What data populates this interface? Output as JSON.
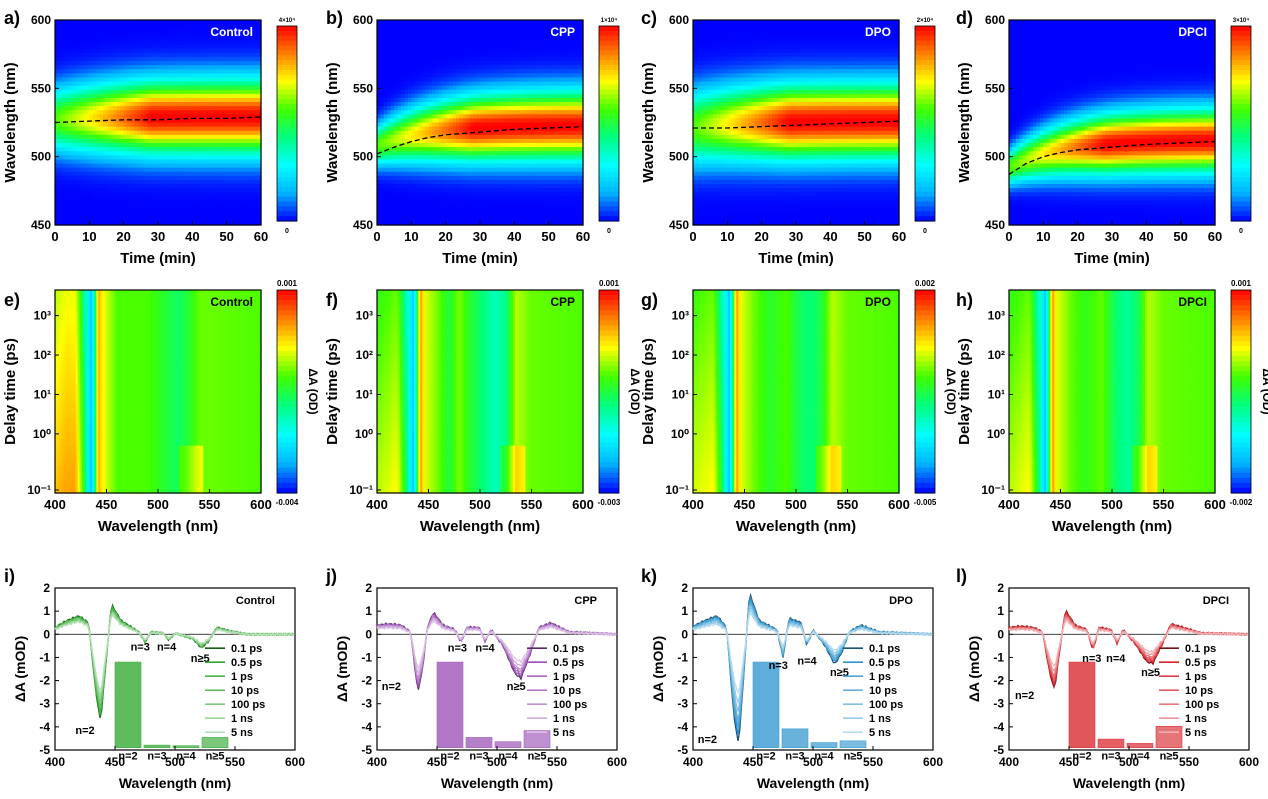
{
  "colors": {
    "control": "#2ea82e",
    "cpp": "#9b4fb5",
    "dpo": "#2f95d0",
    "dpci": "#d8232a",
    "colormap": [
      "#0000ff",
      "#00b4ff",
      "#00ffff",
      "#00ff80",
      "#40ff00",
      "#ffff00",
      "#ff8000",
      "#ff0000"
    ]
  },
  "chart_data": [
    {
      "id": "a",
      "label": "a)",
      "type": "heatmap",
      "title": "Control",
      "xlabel": "Time (min)",
      "ylabel": "Wavelength (nm)",
      "xlim": [
        0,
        60
      ],
      "ylim": [
        450,
        600
      ],
      "xticks": [
        "0",
        "10",
        "20",
        "30",
        "40",
        "50",
        "60"
      ],
      "yticks": [
        "450",
        "500",
        "550",
        "600"
      ],
      "colorbar": {
        "max": "4×10⁴",
        "min": "0"
      },
      "peak_start": 527,
      "peak_end": 529,
      "band_start": 22,
      "band_end": 26,
      "trace": {
        "x": [
          0,
          10,
          20,
          30,
          40,
          50,
          60
        ],
        "y": [
          525,
          526,
          527,
          527,
          528,
          528,
          529
        ]
      }
    },
    {
      "id": "b",
      "label": "b)",
      "type": "heatmap",
      "title": "CPP",
      "xlabel": "Time (min)",
      "ylabel": "Wavelength (nm)",
      "xlim": [
        0,
        60
      ],
      "ylim": [
        450,
        600
      ],
      "xticks": [
        "0",
        "10",
        "20",
        "30",
        "40",
        "50",
        "60"
      ],
      "yticks": [
        "450",
        "500",
        "550",
        "600"
      ],
      "colorbar": {
        "max": "1×10⁴",
        "min": "0"
      },
      "peak_start": 508,
      "peak_end": 523,
      "band_start": 14,
      "band_end": 24,
      "trace": {
        "x": [
          0,
          5,
          10,
          15,
          20,
          30,
          40,
          50,
          60
        ],
        "y": [
          502,
          507,
          511,
          514,
          516,
          518,
          520,
          521,
          522
        ]
      }
    },
    {
      "id": "c",
      "label": "c)",
      "type": "heatmap",
      "title": "DPO",
      "xlabel": "Time (min)",
      "ylabel": "Wavelength (nm)",
      "xlim": [
        0,
        60
      ],
      "ylim": [
        450,
        600
      ],
      "xticks": [
        "0",
        "10",
        "20",
        "30",
        "40",
        "50",
        "60"
      ],
      "yticks": [
        "450",
        "500",
        "550",
        "600"
      ],
      "colorbar": {
        "max": "2×10⁴",
        "min": "0"
      },
      "peak_start": 521,
      "peak_end": 526,
      "band_start": 26,
      "band_end": 26,
      "trace": {
        "x": [
          0,
          10,
          20,
          30,
          40,
          50,
          60
        ],
        "y": [
          521,
          521,
          522,
          523,
          524,
          525,
          526
        ]
      }
    },
    {
      "id": "d",
      "label": "d)",
      "type": "heatmap",
      "title": "DPCI",
      "xlabel": "Time (min)",
      "ylabel": "Wavelength (nm)",
      "xlim": [
        0,
        60
      ],
      "ylim": [
        450,
        600
      ],
      "xticks": [
        "0",
        "10",
        "20",
        "30",
        "40",
        "50",
        "60"
      ],
      "yticks": [
        "450",
        "500",
        "550",
        "600"
      ],
      "colorbar": {
        "max": "3×10⁴",
        "min": "0"
      },
      "peak_start": 492,
      "peak_end": 512,
      "band_start": 12,
      "band_end": 22,
      "trace": {
        "x": [
          0,
          5,
          10,
          15,
          20,
          30,
          40,
          50,
          60
        ],
        "y": [
          487,
          495,
          500,
          503,
          505,
          507,
          509,
          510,
          511
        ]
      }
    },
    {
      "id": "e",
      "label": "e)",
      "type": "heatmap",
      "title": "Control",
      "xlabel": "Wavelength (nm)",
      "ylabel": "Delay time (ps)",
      "xlim": [
        400,
        600
      ],
      "ylog": true,
      "yticks": [
        "10⁻¹",
        "10⁰",
        "10¹",
        "10²",
        "10³"
      ],
      "xticks": [
        "400",
        "450",
        "500",
        "550",
        "600"
      ],
      "colorbar": {
        "max": "0.001",
        "min": "-0.004",
        "label": "ΔA (OD)"
      },
      "profile": {
        "wl": [
          400,
          410,
          420,
          428,
          432,
          435,
          438,
          442,
          446,
          460,
          490,
          520,
          528,
          540,
          555,
          600
        ],
        "v": [
          0.78,
          0.82,
          0.82,
          0.55,
          0.28,
          0.2,
          0.32,
          0.82,
          0.72,
          0.58,
          0.58,
          0.46,
          0.5,
          0.6,
          0.6,
          0.58
        ]
      }
    },
    {
      "id": "f",
      "label": "f)",
      "type": "heatmap",
      "title": "CPP",
      "xlabel": "Wavelength (nm)",
      "ylabel": "Delay time (ps)",
      "xlim": [
        400,
        600
      ],
      "ylog": true,
      "yticks": [
        "10⁻¹",
        "10⁰",
        "10¹",
        "10²",
        "10³"
      ],
      "xticks": [
        "400",
        "450",
        "500",
        "550",
        "600"
      ],
      "colorbar": {
        "max": "0.001",
        "min": "-0.003",
        "label": "ΔA (OD)"
      },
      "profile": {
        "wl": [
          400,
          420,
          428,
          432,
          435,
          438,
          442,
          446,
          460,
          470,
          480,
          490,
          505,
          515,
          525,
          535,
          550,
          600
        ],
        "v": [
          0.66,
          0.72,
          0.5,
          0.28,
          0.2,
          0.35,
          0.85,
          0.7,
          0.6,
          0.5,
          0.62,
          0.52,
          0.42,
          0.36,
          0.42,
          0.66,
          0.6,
          0.58
        ]
      }
    },
    {
      "id": "g",
      "label": "g)",
      "type": "heatmap",
      "title": "DPO",
      "xlabel": "Wavelength (nm)",
      "ylabel": "Delay time (ps)",
      "xlim": [
        400,
        600
      ],
      "ylog": true,
      "yticks": [
        "10⁻¹",
        "10⁰",
        "10¹",
        "10²",
        "10³"
      ],
      "xticks": [
        "400",
        "450",
        "500",
        "550",
        "600"
      ],
      "colorbar": {
        "max": "0.002",
        "min": "-0.005",
        "label": "ΔA (OD)"
      },
      "profile": {
        "wl": [
          400,
          420,
          428,
          432,
          435,
          438,
          442,
          446,
          460,
          475,
          490,
          505,
          515,
          525,
          535,
          550,
          600
        ],
        "v": [
          0.68,
          0.72,
          0.5,
          0.28,
          0.2,
          0.35,
          0.85,
          0.7,
          0.6,
          0.52,
          0.58,
          0.46,
          0.44,
          0.5,
          0.66,
          0.6,
          0.58
        ]
      }
    },
    {
      "id": "h",
      "label": "h)",
      "type": "heatmap",
      "title": "DPCI",
      "xlabel": "Wavelength (nm)",
      "ylabel": "Delay time (ps)",
      "xlim": [
        400,
        600
      ],
      "ylog": true,
      "yticks": [
        "10⁻¹",
        "10⁰",
        "10¹",
        "10²",
        "10³"
      ],
      "xticks": [
        "400",
        "450",
        "500",
        "550",
        "600"
      ],
      "colorbar": {
        "max": "0.001",
        "min": "-0.002",
        "label": "ΔA (OD)"
      },
      "profile": {
        "wl": [
          400,
          420,
          428,
          432,
          435,
          438,
          442,
          446,
          460,
          475,
          490,
          505,
          515,
          525,
          535,
          550,
          600
        ],
        "v": [
          0.66,
          0.72,
          0.5,
          0.28,
          0.2,
          0.35,
          0.85,
          0.7,
          0.6,
          0.54,
          0.6,
          0.44,
          0.4,
          0.46,
          0.66,
          0.6,
          0.58
        ]
      }
    },
    {
      "id": "i",
      "label": "i)",
      "type": "line",
      "title": "Control",
      "xlabel": "Wavelength (nm)",
      "ylabel": "ΔA (mOD)",
      "xlim": [
        400,
        600
      ],
      "ylim": [
        -5,
        2
      ],
      "xticks": [
        "400",
        "450",
        "500",
        "550",
        "600"
      ],
      "yticks": [
        "-5",
        "-4",
        "-3",
        "-2",
        "-1",
        "0",
        "1",
        "2"
      ],
      "legend": [
        "0.1 ps",
        "0.5 ps",
        "1 ps",
        "10 ps",
        "100 ps",
        "1 ns",
        "5 ns"
      ],
      "curve": {
        "wl": [
          400,
          410,
          420,
          428,
          434,
          438,
          442,
          447,
          455,
          470,
          475,
          480,
          490,
          495,
          500,
          515,
          522,
          528,
          535,
          545,
          560,
          600
        ],
        "v": [
          0.3,
          0.6,
          0.8,
          0.5,
          -2.5,
          -3.8,
          -1.5,
          1.3,
          0.6,
          0.1,
          -0.35,
          0.1,
          0.05,
          -0.25,
          0.05,
          -0.2,
          -0.6,
          -0.3,
          0.3,
          0.15,
          0.0,
          0.0
        ]
      },
      "scales": [
        1.0,
        0.96,
        0.92,
        0.86,
        0.8,
        0.74,
        0.68
      ],
      "bars": {
        "categories": [
          "n=2",
          "n=3",
          "n=4",
          "n≥5"
        ],
        "values": [
          1.0,
          0.03,
          0.02,
          0.12
        ]
      },
      "annotations": [
        {
          "text": "n=2",
          "x": 425,
          "y": -4.3
        },
        {
          "text": "n=3",
          "x": 471,
          "y": -0.7
        },
        {
          "text": "n=4",
          "x": 493,
          "y": -0.7
        },
        {
          "text": "n≥5",
          "x": 521,
          "y": -1.2
        }
      ]
    },
    {
      "id": "j",
      "label": "j)",
      "type": "line",
      "title": "CPP",
      "xlabel": "Wavelength (nm)",
      "ylabel": "ΔA (mOD)",
      "xlim": [
        400,
        600
      ],
      "ylim": [
        -5,
        2
      ],
      "xticks": [
        "400",
        "450",
        "500",
        "550",
        "600"
      ],
      "yticks": [
        "-5",
        "-4",
        "-3",
        "-2",
        "-1",
        "0",
        "1",
        "2"
      ],
      "legend": [
        "0.1 ps",
        "0.5 ps",
        "1 ps",
        "10 ps",
        "100 ps",
        "1 ns",
        "5 ns"
      ],
      "curve": {
        "wl": [
          400,
          410,
          420,
          428,
          434,
          438,
          442,
          447,
          455,
          465,
          470,
          475,
          485,
          490,
          495,
          505,
          515,
          520,
          528,
          535,
          545,
          560,
          600
        ],
        "v": [
          0.4,
          0.45,
          0.4,
          0.1,
          -2.5,
          -1.5,
          0.3,
          0.95,
          0.4,
          0.2,
          -0.35,
          0.3,
          0.3,
          -0.3,
          0.2,
          -0.5,
          -1.7,
          -1.9,
          -0.8,
          0.3,
          0.5,
          0.1,
          0.0
        ]
      },
      "scales": [
        1.0,
        0.95,
        0.9,
        0.85,
        0.8,
        0.72,
        0.62
      ],
      "bars": {
        "categories": [
          "n=2",
          "n=3",
          "n=4",
          "n≥5"
        ],
        "values": [
          1.0,
          0.12,
          0.07,
          0.2
        ]
      },
      "annotations": [
        {
          "text": "n=2",
          "x": 412,
          "y": -2.4
        },
        {
          "text": "n=3",
          "x": 467,
          "y": -0.75
        },
        {
          "text": "n=4",
          "x": 490,
          "y": -0.75
        },
        {
          "text": "n≥5",
          "x": 516,
          "y": -2.4
        }
      ]
    },
    {
      "id": "k",
      "label": "k)",
      "type": "line",
      "title": "DPO",
      "xlabel": "Wavelength (nm)",
      "ylabel": "ΔA (mOD)",
      "xlim": [
        400,
        600
      ],
      "ylim": [
        -5,
        2
      ],
      "xticks": [
        "400",
        "450",
        "500",
        "550",
        "600"
      ],
      "yticks": [
        "-5",
        "-4",
        "-3",
        "-2",
        "-1",
        "0",
        "1",
        "2"
      ],
      "legend": [
        "0.1 ps",
        "0.5 ps",
        "1 ps",
        "10 ps",
        "100 ps",
        "1 ns",
        "5 ns"
      ],
      "curve": {
        "wl": [
          400,
          410,
          420,
          428,
          434,
          438,
          442,
          447,
          455,
          470,
          475,
          480,
          490,
          495,
          500,
          510,
          518,
          524,
          530,
          540,
          555,
          600
        ],
        "v": [
          0.35,
          0.6,
          0.8,
          0.3,
          -3.5,
          -4.8,
          -2.0,
          1.8,
          0.6,
          0.2,
          -1.0,
          0.7,
          0.5,
          -0.5,
          0.2,
          -0.5,
          -1.3,
          -0.8,
          0.1,
          0.4,
          0.1,
          0.0
        ]
      },
      "scales": [
        1.0,
        0.93,
        0.86,
        0.8,
        0.72,
        0.64,
        0.55
      ],
      "bars": {
        "categories": [
          "n=2",
          "n=3",
          "n=4",
          "n≥5"
        ],
        "values": [
          1.0,
          0.22,
          0.06,
          0.08
        ]
      },
      "annotations": [
        {
          "text": "n=2",
          "x": 412,
          "y": -4.7
        },
        {
          "text": "n=3",
          "x": 471,
          "y": -1.5
        },
        {
          "text": "n=4",
          "x": 495,
          "y": -1.3
        },
        {
          "text": "n≥5",
          "x": 522,
          "y": -1.8
        }
      ]
    },
    {
      "id": "l",
      "label": "l)",
      "type": "line",
      "title": "DPCI",
      "xlabel": "Wavelength (nm)",
      "ylabel": "ΔA (mOD)",
      "xlim": [
        400,
        600
      ],
      "ylim": [
        -5,
        2
      ],
      "xticks": [
        "400",
        "450",
        "500",
        "550",
        "600"
      ],
      "yticks": [
        "-5",
        "-4",
        "-3",
        "-2",
        "-1",
        "0",
        "1",
        "2"
      ],
      "legend": [
        "0.1 ps",
        "0.5 ps",
        "1 ps",
        "10 ps",
        "100 ps",
        "1 ns",
        "5 ns"
      ],
      "curve": {
        "wl": [
          400,
          410,
          420,
          428,
          434,
          438,
          442,
          447,
          455,
          465,
          470,
          475,
          485,
          490,
          495,
          505,
          515,
          520,
          528,
          535,
          545,
          560,
          600
        ],
        "v": [
          0.3,
          0.35,
          0.3,
          0.1,
          -1.7,
          -2.4,
          -0.8,
          1.05,
          0.4,
          0.2,
          -0.7,
          0.3,
          0.2,
          -0.4,
          0.2,
          -0.4,
          -1.2,
          -1.25,
          -0.4,
          0.45,
          0.3,
          0.05,
          0.0
        ]
      },
      "scales": [
        1.0,
        0.95,
        0.9,
        0.84,
        0.78,
        0.7,
        0.6
      ],
      "bars": {
        "categories": [
          "n=2",
          "n=3",
          "n=4",
          "n≥5"
        ],
        "values": [
          1.0,
          0.1,
          0.05,
          0.25
        ]
      },
      "annotations": [
        {
          "text": "n=2",
          "x": 413,
          "y": -2.8
        },
        {
          "text": "n=3",
          "x": 469,
          "y": -1.2
        },
        {
          "text": "n=4",
          "x": 489,
          "y": -1.2
        },
        {
          "text": "n≥5",
          "x": 518,
          "y": -1.8
        }
      ]
    }
  ]
}
